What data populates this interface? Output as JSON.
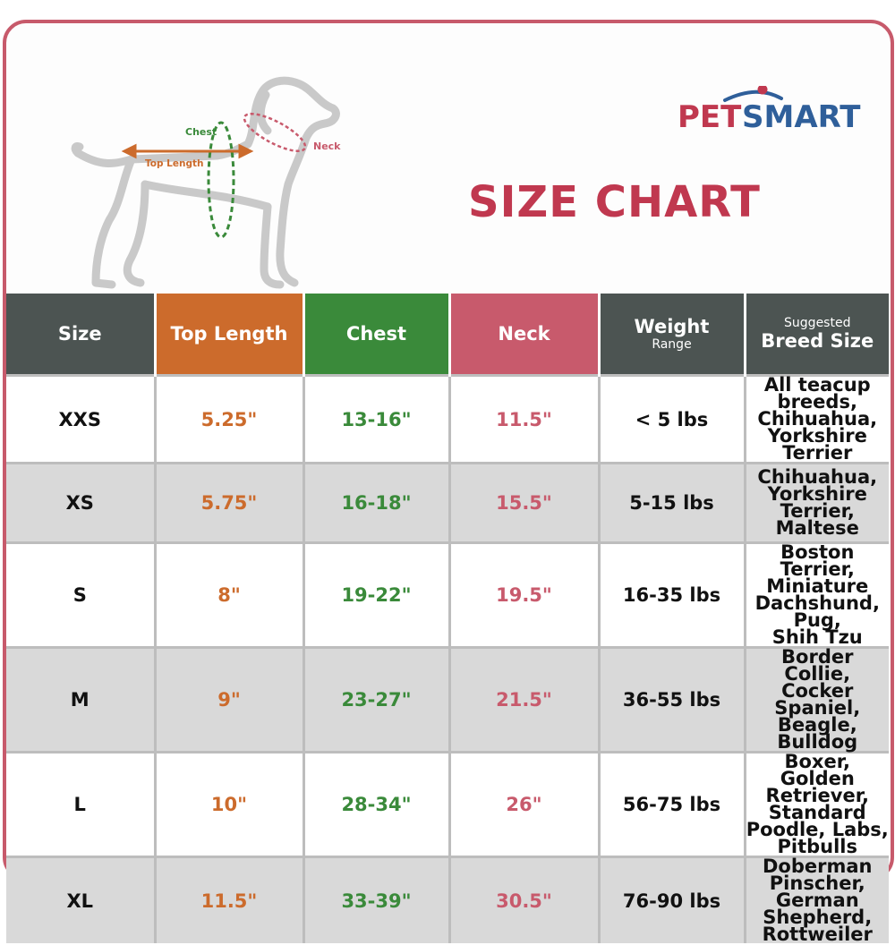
{
  "brand": {
    "name_pet": "PET",
    "name_smart": "SMART"
  },
  "title": "SIZE CHART",
  "diagram": {
    "chest_label": "Chest",
    "length_label": "Top Length",
    "neck_label": "Neck"
  },
  "colors": {
    "header_dark": "#4c5452",
    "top_length": "#cc6b2c",
    "chest": "#3a8a3a",
    "neck": "#c85a6c",
    "title": "#c0384f",
    "frame": "#c75a6b",
    "logo_blue": "#2f5f9a"
  },
  "table": {
    "headers": {
      "size": "Size",
      "top_length": "Top Length",
      "chest": "Chest",
      "neck": "Neck",
      "weight_main": "Weight",
      "weight_sub": "Range",
      "breed_sub": "Suggested",
      "breed_main": "Breed Size"
    },
    "rows": [
      {
        "size": "XXS",
        "top_length": "5.25\"",
        "chest": "13-16\"",
        "neck": "11.5\"",
        "weight": "< 5 lbs",
        "breeds": [
          "All teacup breeds,",
          "Chihuahua,",
          "Yorkshire Terrier"
        ]
      },
      {
        "size": "XS",
        "top_length": "5.75\"",
        "chest": "16-18\"",
        "neck": "15.5\"",
        "weight": "5-15 lbs",
        "breeds": [
          "Chihuahua,",
          "Yorkshire Terrier,",
          "Maltese"
        ]
      },
      {
        "size": "S",
        "top_length": "8\"",
        "chest": "19-22\"",
        "neck": "19.5\"",
        "weight": "16-35 lbs",
        "breeds": [
          "Boston Terrier,",
          "Miniature",
          "Dachshund, Pug,",
          "Shih Tzu"
        ]
      },
      {
        "size": "M",
        "top_length": "9\"",
        "chest": "23-27\"",
        "neck": "21.5\"",
        "weight": "36-55 lbs",
        "breeds": [
          "Border Collie,",
          "Cocker Spaniel,",
          "Beagle, Bulldog"
        ]
      },
      {
        "size": "L",
        "top_length": "10\"",
        "chest": "28-34\"",
        "neck": "26\"",
        "weight": "56-75 lbs",
        "breeds": [
          "Boxer, Golden",
          "Retriever, Standard",
          "Poodle, Labs,",
          "Pitbulls"
        ]
      },
      {
        "size": "XL",
        "top_length": "11.5\"",
        "chest": "33-39\"",
        "neck": "30.5\"",
        "weight": "76-90 lbs",
        "breeds": [
          "Doberman Pinscher,",
          "German Shepherd,",
          "Rottweiler"
        ]
      }
    ]
  }
}
